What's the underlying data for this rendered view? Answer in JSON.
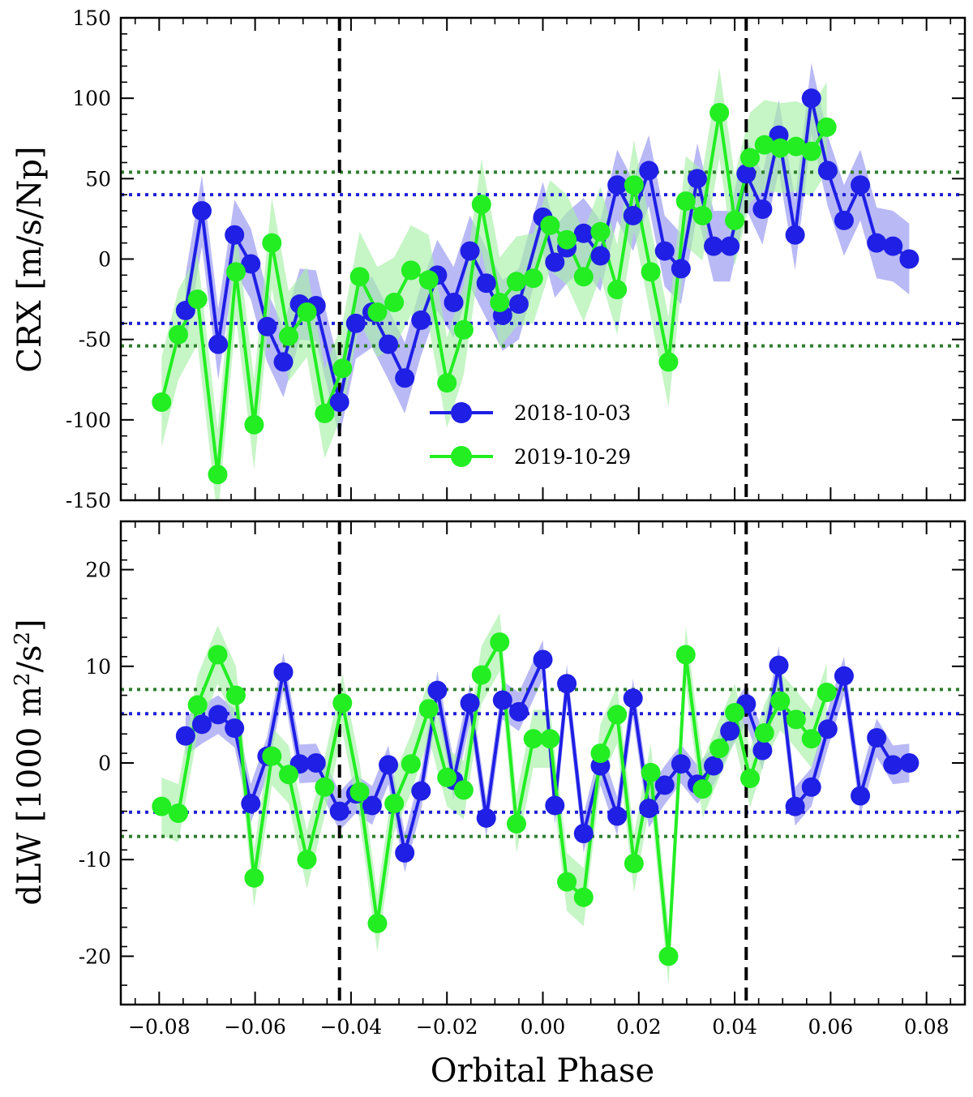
{
  "chart_data": [
    {
      "type": "line",
      "panel": "top",
      "ylabel": "CRX [m/s/Np]",
      "xlabel": "",
      "xlim": [
        -0.088,
        0.088
      ],
      "ylim": [
        -150,
        150
      ],
      "yticks": [
        -150,
        -100,
        -50,
        0,
        50,
        100,
        150
      ],
      "yticklabels": [
        "-150",
        "-100",
        "-50",
        "0",
        "50",
        "100",
        "150"
      ],
      "vlines": [
        -0.0424,
        0.0424
      ],
      "hlines": [
        {
          "y": 40,
          "color": "#1f1fd6"
        },
        {
          "y": -40,
          "color": "#1f1fd6"
        },
        {
          "y": 54,
          "color": "#2e7d2e"
        },
        {
          "y": -54,
          "color": "#2e7d2e"
        }
      ],
      "legend": {
        "position": "lower-center",
        "entries": [
          {
            "label": "2018-10-03",
            "color": "#1f1fe6"
          },
          {
            "label": "2019-10-29",
            "color": "#22ee22"
          }
        ]
      },
      "series": [
        {
          "name": "2018-10-03",
          "color": "#1f1fe6",
          "band": "#a8a8f4",
          "err": 22,
          "x": [
            -0.0745,
            -0.0711,
            -0.0677,
            -0.0643,
            -0.0609,
            -0.0575,
            -0.0541,
            -0.0507,
            -0.0473,
            -0.0424,
            -0.039,
            -0.0356,
            -0.0322,
            -0.0288,
            -0.0254,
            -0.022,
            -0.0186,
            -0.0152,
            -0.0118,
            -0.0084,
            -0.005,
            0.0,
            0.0025,
            0.005,
            0.0085,
            0.012,
            0.0155,
            0.0188,
            0.0221,
            0.0254,
            0.0288,
            0.0322,
            0.0356,
            0.039,
            0.0424,
            0.0458,
            0.0492,
            0.0526,
            0.056,
            0.0594,
            0.0628,
            0.0662,
            0.0696,
            0.073,
            0.0764
          ],
          "y": [
            -32,
            30,
            -53,
            15,
            -3,
            -42,
            -64,
            -28,
            -29,
            -89,
            -40,
            -33,
            -53,
            -74,
            -38,
            -10,
            -27,
            5,
            -15,
            -35,
            -28,
            26,
            -2,
            7,
            16,
            2,
            46,
            27,
            55,
            5,
            -6,
            50,
            8,
            8,
            53,
            31,
            77,
            15,
            100,
            55,
            24,
            46,
            10,
            8,
            0
          ]
        },
        {
          "name": "2019-10-29",
          "color": "#22ee22",
          "band": "#a8f0a8",
          "err": 28,
          "x": [
            -0.0795,
            -0.076,
            -0.072,
            -0.0678,
            -0.064,
            -0.0602,
            -0.0565,
            -0.053,
            -0.0492,
            -0.0455,
            -0.0418,
            -0.0382,
            -0.0345,
            -0.031,
            -0.0275,
            -0.0238,
            -0.02,
            -0.0165,
            -0.0128,
            -0.009,
            -0.0055,
            -0.002,
            0.0015,
            0.005,
            0.0085,
            0.012,
            0.0155,
            0.019,
            0.0225,
            0.0262,
            0.0298,
            0.0333,
            0.0368,
            0.04,
            0.0432,
            0.0462,
            0.0495,
            0.0528,
            0.056,
            0.0592
          ],
          "y": [
            -89,
            -47,
            -25,
            -134,
            -8,
            -103,
            10,
            -48,
            -33,
            -96,
            -68,
            -11,
            -33,
            -27,
            -7,
            -13,
            -77,
            -44,
            34,
            -27,
            -14,
            -12,
            21,
            12,
            -11,
            17,
            -19,
            46,
            -8,
            -64,
            36,
            27,
            91,
            24,
            63,
            71,
            69,
            70,
            67,
            82
          ]
        }
      ]
    },
    {
      "type": "line",
      "panel": "bottom",
      "ylabel": "dLW [1000 m²/s²]",
      "ylabel_main": "dLW [1000 m",
      "ylabel_sup": "2",
      "ylabel_mid": "/s",
      "ylabel_end": "]",
      "xlabel": "Orbital Phase",
      "xlim": [
        -0.088,
        0.088
      ],
      "ylim": [
        -25,
        25
      ],
      "xticks": [
        -0.08,
        -0.06,
        -0.04,
        -0.02,
        0.0,
        0.02,
        0.04,
        0.06,
        0.08
      ],
      "xticklabels": [
        "−0.08",
        "−0.06",
        "−0.04",
        "−0.02",
        "0.00",
        "0.02",
        "0.04",
        "0.06",
        "0.08"
      ],
      "yticks": [
        -20,
        -10,
        0,
        10,
        20
      ],
      "yticklabels": [
        "-20",
        "-10",
        "0",
        "10",
        "20"
      ],
      "vlines": [
        -0.0424,
        0.0424
      ],
      "hlines": [
        {
          "y": 5.1,
          "color": "#1f1fd6"
        },
        {
          "y": -5.1,
          "color": "#1f1fd6"
        },
        {
          "y": 7.6,
          "color": "#2e7d2e"
        },
        {
          "y": -7.6,
          "color": "#2e7d2e"
        }
      ],
      "series": [
        {
          "name": "2018-10-03",
          "color": "#1f1fe6",
          "band": "#a8a8f4",
          "err": 2,
          "x": [
            -0.0745,
            -0.0711,
            -0.0677,
            -0.0643,
            -0.0609,
            -0.0575,
            -0.0541,
            -0.0507,
            -0.0473,
            -0.0424,
            -0.039,
            -0.0356,
            -0.0322,
            -0.0288,
            -0.0254,
            -0.022,
            -0.0186,
            -0.0152,
            -0.0118,
            -0.0084,
            -0.005,
            0.0,
            0.0025,
            0.005,
            0.0085,
            0.012,
            0.0155,
            0.0188,
            0.0221,
            0.0254,
            0.0288,
            0.0322,
            0.0356,
            0.039,
            0.0424,
            0.0458,
            0.0492,
            0.0526,
            0.056,
            0.0594,
            0.0628,
            0.0662,
            0.0696,
            0.073,
            0.0764
          ],
          "y": [
            2.8,
            4.0,
            5.0,
            3.6,
            -4.2,
            0.7,
            9.4,
            -0.1,
            0.0,
            -5.0,
            -3.2,
            -4.4,
            -0.2,
            -9.3,
            -2.9,
            7.5,
            -1.8,
            6.2,
            -5.7,
            6.5,
            5.3,
            10.7,
            -4.4,
            8.2,
            -7.3,
            -0.3,
            -5.5,
            6.7,
            -4.7,
            -2.3,
            -0.1,
            -2.2,
            -0.3,
            3.3,
            6.1,
            1.3,
            10.1,
            -4.5,
            -2.5,
            3.5,
            9.0,
            -3.4,
            2.6,
            -0.2,
            0.0
          ]
        },
        {
          "name": "2019-10-29",
          "color": "#22ee22",
          "band": "#a8f0a8",
          "err": 3,
          "x": [
            -0.0795,
            -0.076,
            -0.072,
            -0.0678,
            -0.064,
            -0.0602,
            -0.0565,
            -0.053,
            -0.0492,
            -0.0455,
            -0.0418,
            -0.0382,
            -0.0345,
            -0.031,
            -0.0275,
            -0.0238,
            -0.02,
            -0.0165,
            -0.0128,
            -0.009,
            -0.0055,
            -0.002,
            0.0015,
            0.005,
            0.0085,
            0.012,
            0.0155,
            0.019,
            0.0225,
            0.0262,
            0.0298,
            0.0333,
            0.0368,
            0.04,
            0.0432,
            0.0462,
            0.0495,
            0.0528,
            0.056,
            0.0592
          ],
          "y": [
            -4.5,
            -5.2,
            6.0,
            11.2,
            7.0,
            -11.9,
            0.7,
            -1.2,
            -10.0,
            -2.5,
            6.2,
            -3.0,
            -16.6,
            -4.2,
            -0.1,
            5.6,
            -1.5,
            -2.8,
            9.1,
            12.5,
            -6.3,
            2.5,
            2.5,
            -12.3,
            -13.9,
            1.0,
            5.0,
            -10.4,
            -1.0,
            -20.0,
            11.2,
            -2.7,
            1.5,
            5.2,
            -1.6,
            3.1,
            6.4,
            4.5,
            2.5,
            7.3
          ]
        }
      ]
    }
  ]
}
